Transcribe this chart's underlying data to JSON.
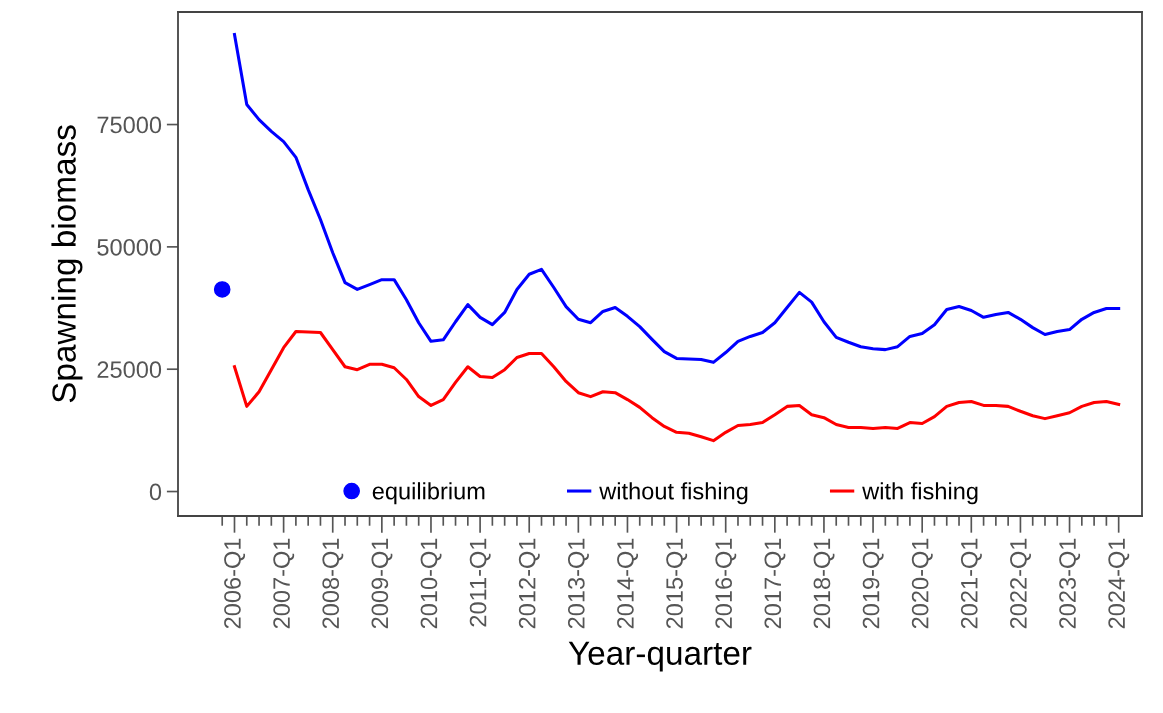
{
  "chart_data": {
    "type": "line",
    "xlabel": "Year-quarter",
    "ylabel": "Spawning biomass",
    "categories": [
      null,
      "2006-Q1",
      null,
      null,
      null,
      "2007-Q1",
      null,
      null,
      null,
      "2008-Q1",
      null,
      null,
      null,
      "2009-Q1",
      null,
      null,
      null,
      "2010-Q1",
      null,
      null,
      null,
      "2011-Q1",
      null,
      null,
      null,
      "2012-Q1",
      null,
      null,
      null,
      "2013-Q1",
      null,
      null,
      null,
      "2014-Q1",
      null,
      null,
      null,
      "2015-Q1",
      null,
      null,
      null,
      "2016-Q1",
      null,
      null,
      null,
      "2017-Q1",
      null,
      null,
      null,
      "2018-Q1",
      null,
      null,
      null,
      "2019-Q1",
      null,
      null,
      null,
      "2020-Q1",
      null,
      null,
      null,
      "2021-Q1",
      null,
      null,
      null,
      "2022-Q1",
      null,
      null,
      null,
      "2023-Q1",
      null,
      null,
      null,
      "2024-Q1"
    ],
    "series": [
      {
        "name": "equilibrium",
        "type": "scatter",
        "marker": "circle",
        "color": "#0000ff",
        "values": [
          41300,
          null,
          null,
          null,
          null,
          null,
          null,
          null,
          null,
          null,
          null,
          null,
          null,
          null,
          null,
          null,
          null,
          null,
          null,
          null,
          null,
          null,
          null,
          null,
          null,
          null,
          null,
          null,
          null,
          null,
          null,
          null,
          null,
          null,
          null,
          null,
          null,
          null,
          null,
          null,
          null,
          null,
          null,
          null,
          null,
          null,
          null,
          null,
          null,
          null,
          null,
          null,
          null,
          null,
          null,
          null,
          null,
          null,
          null,
          null,
          null,
          null,
          null,
          null,
          null,
          null,
          null,
          null,
          null,
          null,
          null,
          null,
          null,
          null
        ]
      },
      {
        "name": "without fishing",
        "color": "#0000ff",
        "values": [
          null,
          93400,
          79100,
          76000,
          73600,
          71500,
          68300,
          61700,
          55600,
          48800,
          42700,
          41300,
          42300,
          43300,
          43300,
          39200,
          34500,
          30700,
          31000,
          34700,
          38200,
          35600,
          34100,
          36600,
          41300,
          44400,
          45400,
          41700,
          37800,
          35200,
          34500,
          36800,
          37600,
          35800,
          33700,
          31100,
          28600,
          27200,
          27100,
          27000,
          26400,
          28400,
          30700,
          31700,
          32500,
          34500,
          37600,
          40700,
          38700,
          34700,
          31500,
          30500,
          29600,
          29200,
          29000,
          29600,
          31700,
          32300,
          34100,
          37200,
          37800,
          37000,
          35600,
          36200,
          36600,
          35200,
          33500,
          32100,
          32700,
          33100,
          35200,
          36600,
          37400,
          37400
        ]
      },
      {
        "name": "with fishing",
        "color": "#ff0000",
        "values": [
          null,
          25500,
          17400,
          20400,
          24900,
          29400,
          32700,
          32600,
          32500,
          29000,
          25500,
          24900,
          26000,
          26000,
          25300,
          22900,
          19400,
          17600,
          18800,
          22300,
          25500,
          23500,
          23300,
          24900,
          27400,
          28200,
          28200,
          25500,
          22500,
          20200,
          19400,
          20400,
          20200,
          18800,
          17200,
          15100,
          13300,
          12100,
          11900,
          11200,
          10400,
          12100,
          13500,
          13700,
          14100,
          15700,
          17400,
          17600,
          15700,
          15100,
          13700,
          13100,
          13100,
          12900,
          13100,
          12900,
          14100,
          13900,
          15300,
          17400,
          18200,
          18400,
          17600,
          17600,
          17400,
          16400,
          15500,
          14900,
          15500,
          16100,
          17400,
          18200,
          18400,
          17800
        ]
      }
    ],
    "ylim": [
      -5000,
      98000
    ],
    "yticks": [
      0,
      25000,
      50000,
      75000
    ],
    "grid": false,
    "legend": "bottom"
  }
}
